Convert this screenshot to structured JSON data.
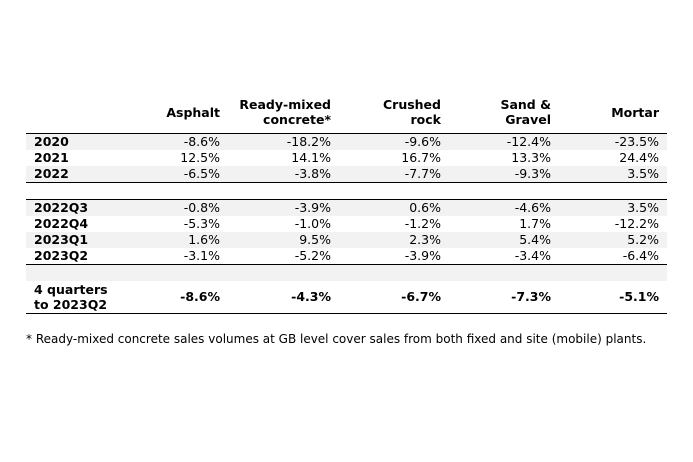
{
  "columns": [
    "Asphalt",
    "Ready-mixed\nconcrete*",
    "Crushed\nrock",
    "Sand &\nGravel",
    "Mortar"
  ],
  "annual": [
    {
      "label": "2020",
      "values": [
        "-8.6%",
        "-18.2%",
        "-9.6%",
        "-12.4%",
        "-23.5%"
      ]
    },
    {
      "label": "2021",
      "values": [
        "12.5%",
        "14.1%",
        "16.7%",
        "13.3%",
        "24.4%"
      ]
    },
    {
      "label": "2022",
      "values": [
        "-6.5%",
        "-3.8%",
        "-7.7%",
        "-9.3%",
        "3.5%"
      ]
    }
  ],
  "quarterly": [
    {
      "label": "2022Q3",
      "values": [
        "-0.8%",
        "-3.9%",
        "0.6%",
        "-4.6%",
        "3.5%"
      ]
    },
    {
      "label": "2022Q4",
      "values": [
        "-5.3%",
        "-1.0%",
        "-1.2%",
        "1.7%",
        "-12.2%"
      ]
    },
    {
      "label": "2023Q1",
      "values": [
        "1.6%",
        "9.5%",
        "2.3%",
        "5.4%",
        "5.2%"
      ]
    },
    {
      "label": "2023Q2",
      "values": [
        "-3.1%",
        "-5.2%",
        "-3.9%",
        "-3.4%",
        "-6.4%"
      ]
    }
  ],
  "total": {
    "label": "4 quarters\nto 2023Q2",
    "values": [
      "-8.6%",
      "-4.3%",
      "-6.7%",
      "-7.3%",
      "-5.1%"
    ]
  },
  "footnote": "* Ready-mixed concrete sales volumes at GB level cover sales from both fixed and site (mobile) plants."
}
